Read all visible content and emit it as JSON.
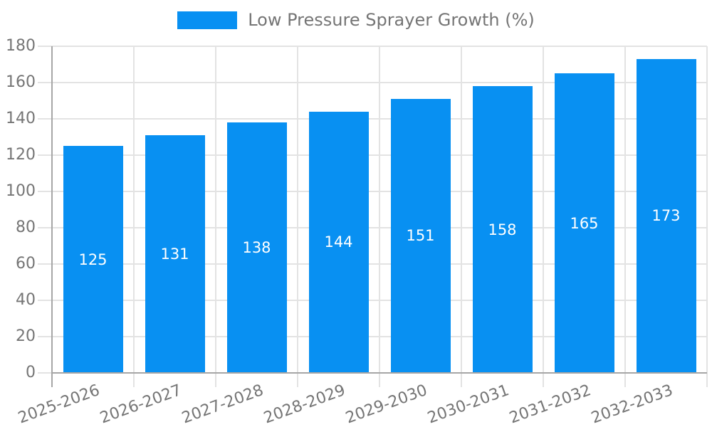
{
  "chart_data": {
    "type": "bar",
    "title": "Low Pressure Sprayer Growth (%)",
    "categories": [
      "2025-2026",
      "2026-2027",
      "2027-2028",
      "2028-2029",
      "2029-2030",
      "2030-2031",
      "2031-2032",
      "2032-2033"
    ],
    "values": [
      125,
      131,
      138,
      144,
      151,
      158,
      165,
      173
    ],
    "xlabel": "",
    "ylabel": "",
    "ylim": [
      0,
      180
    ],
    "ytick_step": 20,
    "ytick_labels": [
      "0",
      "20",
      "40",
      "60",
      "80",
      "100",
      "120",
      "140",
      "160",
      "180"
    ],
    "grid": true,
    "legend_position": "top",
    "x_label_rotation_deg": -20,
    "colors": {
      "bar": "#0890f2",
      "bar_value_text": "#ffffff",
      "axis_text": "#757575",
      "grid_line": "#e3e3e3",
      "axis_line": "#a6a6a6",
      "background": "#ffffff"
    }
  }
}
